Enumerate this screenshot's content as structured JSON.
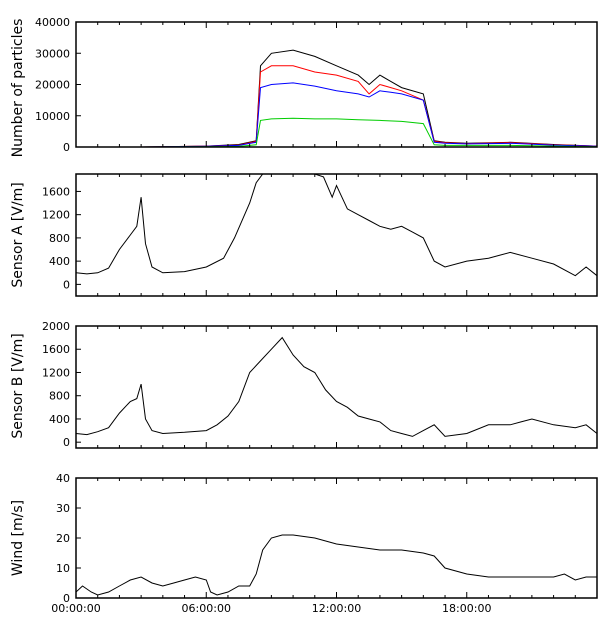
{
  "chart_data": [
    {
      "type": "line",
      "ylabel": "Number of particles",
      "ylim": [
        0,
        40000
      ],
      "yticks": [
        0,
        10000,
        20000,
        30000,
        40000
      ],
      "xlim": [
        0,
        24
      ],
      "grid": false,
      "series": [
        {
          "color": "#000000",
          "x": [
            0,
            3,
            6,
            7.5,
            8.3,
            8.5,
            9,
            10,
            11,
            12,
            13,
            13.5,
            14,
            14.5,
            15,
            16,
            16.5,
            17,
            18,
            20,
            22,
            24
          ],
          "y": [
            0,
            0,
            300,
            800,
            2000,
            26000,
            30000,
            31000,
            29000,
            26000,
            23000,
            20000,
            23000,
            21000,
            19000,
            17000,
            2000,
            1500,
            1200,
            1500,
            800,
            300
          ]
        },
        {
          "color": "#ff0000",
          "x": [
            0,
            3,
            6,
            7.5,
            8.3,
            8.5,
            9,
            10,
            11,
            12,
            13,
            13.5,
            14,
            14.5,
            15,
            16,
            16.5,
            17,
            18,
            20,
            22,
            24
          ],
          "y": [
            0,
            0,
            300,
            600,
            1800,
            24000,
            26000,
            26000,
            24000,
            23000,
            21000,
            17000,
            20000,
            19000,
            18000,
            15000,
            1800,
            1400,
            1100,
            1400,
            700,
            300
          ]
        },
        {
          "color": "#0000ff",
          "x": [
            0,
            3,
            6,
            7.5,
            8.3,
            8.5,
            9,
            10,
            11,
            12,
            13,
            13.5,
            14,
            14.5,
            15,
            16,
            16.5,
            17,
            18,
            20,
            22,
            24
          ],
          "y": [
            0,
            0,
            250,
            500,
            1500,
            19000,
            20000,
            20500,
            19500,
            18000,
            17000,
            16000,
            18000,
            17500,
            17000,
            15000,
            1500,
            1200,
            1000,
            1200,
            600,
            250
          ]
        },
        {
          "color": "#00cc00",
          "x": [
            0,
            3,
            6,
            7.5,
            8.3,
            8.5,
            9,
            10,
            11,
            12,
            13,
            14,
            15,
            16,
            16.5,
            17,
            18,
            20,
            22,
            24
          ],
          "y": [
            0,
            0,
            100,
            200,
            700,
            8500,
            9000,
            9200,
            9000,
            9000,
            8700,
            8500,
            8200,
            7500,
            700,
            500,
            500,
            500,
            300,
            100
          ]
        }
      ]
    },
    {
      "type": "line",
      "ylabel": "Sensor A [V/m]",
      "ylim": [
        -200,
        1900
      ],
      "yticks": [
        0,
        400,
        800,
        1200,
        1600
      ],
      "xlim": [
        0,
        24
      ],
      "grid": false,
      "series": [
        {
          "color": "#000000",
          "x": [
            0,
            0.5,
            1,
            1.5,
            2,
            2.5,
            2.8,
            3.0,
            3.2,
            3.5,
            4,
            5,
            6,
            6.8,
            7.3,
            8,
            8.3,
            8.6,
            9,
            10,
            11,
            11.4,
            11.8,
            12,
            12.5,
            13,
            13.5,
            14,
            14.5,
            15,
            15.5,
            16,
            16.5,
            17,
            18,
            19,
            20,
            21,
            22,
            23,
            23.5,
            24
          ],
          "y": [
            200,
            180,
            200,
            280,
            600,
            850,
            1000,
            1500,
            700,
            300,
            200,
            220,
            300,
            450,
            800,
            1400,
            1750,
            1900,
            1900,
            1900,
            1900,
            1850,
            1500,
            1700,
            1300,
            1200,
            1100,
            1000,
            950,
            1000,
            900,
            800,
            400,
            300,
            400,
            450,
            550,
            450,
            350,
            150,
            300,
            150
          ]
        }
      ]
    },
    {
      "type": "line",
      "ylabel": "Sensor B [V/m]",
      "ylim": [
        -100,
        2000
      ],
      "yticks": [
        0,
        400,
        800,
        1200,
        1600,
        2000
      ],
      "xlim": [
        0,
        24
      ],
      "grid": false,
      "series": [
        {
          "color": "#000000",
          "x": [
            0,
            0.5,
            1,
            1.5,
            2,
            2.5,
            2.8,
            3.0,
            3.2,
            3.5,
            4,
            5,
            6,
            6.5,
            7,
            7.5,
            8,
            8.5,
            9,
            9.5,
            10,
            10.5,
            11,
            11.5,
            12,
            12.5,
            13,
            13.5,
            14,
            14.5,
            15,
            15.5,
            16,
            16.5,
            17,
            18,
            19,
            20,
            20.5,
            21,
            22,
            23,
            23.5,
            24
          ],
          "y": [
            150,
            130,
            180,
            250,
            500,
            700,
            750,
            1000,
            400,
            200,
            150,
            170,
            200,
            300,
            450,
            700,
            1200,
            1400,
            1600,
            1800,
            1500,
            1300,
            1200,
            900,
            700,
            600,
            450,
            400,
            350,
            200,
            150,
            100,
            200,
            300,
            100,
            150,
            300,
            300,
            350,
            400,
            300,
            250,
            300,
            150
          ]
        }
      ]
    },
    {
      "type": "line",
      "ylabel": "Wind [m/s]",
      "xlabel": "",
      "ylim": [
        0,
        40
      ],
      "yticks": [
        0,
        10,
        20,
        30,
        40
      ],
      "xlim": [
        0,
        24
      ],
      "xticks": [
        0,
        6,
        12,
        18
      ],
      "xticklabels": [
        "00:00:00",
        "06:00:00",
        "12:00:00",
        "18:00:00"
      ],
      "grid": false,
      "series": [
        {
          "color": "#000000",
          "x": [
            0,
            0.3,
            0.7,
            1,
            1.5,
            2,
            2.5,
            3,
            3.5,
            4,
            4.5,
            5,
            5.5,
            6,
            6.2,
            6.5,
            7,
            7.5,
            8,
            8.3,
            8.6,
            9,
            9.5,
            10,
            11,
            12,
            13,
            14,
            15,
            16,
            16.5,
            17,
            18,
            19,
            20,
            21,
            22,
            22.5,
            23,
            23.5,
            24
          ],
          "y": [
            2,
            4,
            2,
            1,
            2,
            4,
            6,
            7,
            5,
            4,
            5,
            6,
            7,
            6,
            2,
            1,
            2,
            4,
            4,
            8,
            16,
            20,
            21,
            21,
            20,
            18,
            17,
            16,
            16,
            15,
            14,
            10,
            8,
            7,
            7,
            7,
            7,
            8,
            6,
            7,
            7
          ]
        }
      ]
    }
  ]
}
